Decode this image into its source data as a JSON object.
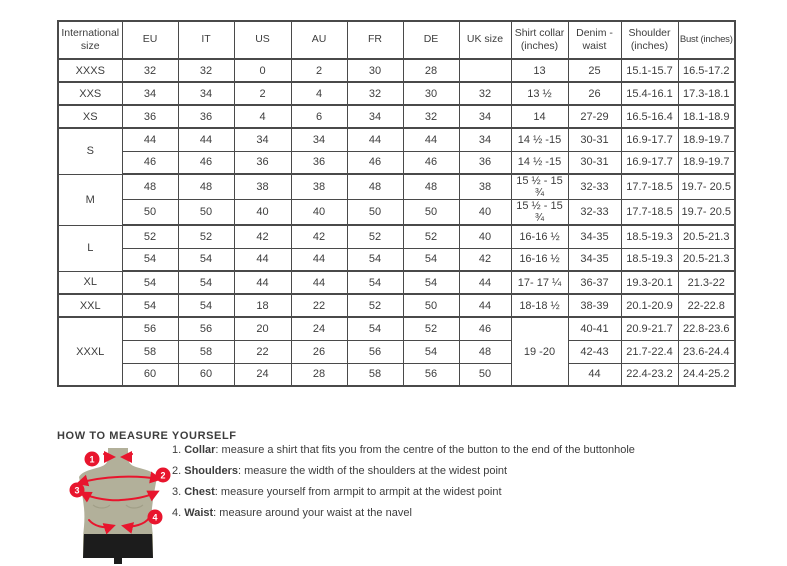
{
  "colors": {
    "accent": "#e8152d",
    "mannequin": "#b2b09a",
    "shorts": "#1c1c1c",
    "border": "#4a4a4a",
    "text": "#3d3d3d"
  },
  "table": {
    "headers": [
      "International size",
      "EU",
      "IT",
      "US",
      "AU",
      "FR",
      "DE",
      "UK size",
      "Shirt collar (inches)",
      "Denim - waist",
      "Shoulder (inches)",
      "Bust (inches)"
    ],
    "rows": [
      {
        "cells": [
          "XXXS",
          "32",
          "32",
          "0",
          "2",
          "30",
          "28",
          "",
          "13",
          "25",
          "15.1-15.7",
          "16.5-17.2"
        ],
        "group_end": true
      },
      {
        "cells": [
          "XXS",
          "34",
          "34",
          "2",
          "4",
          "32",
          "30",
          "32",
          "13 ½",
          "26",
          "15.4-16.1",
          "17.3-18.1"
        ],
        "group_end": true
      },
      {
        "cells": [
          "XS",
          "36",
          "36",
          "4",
          "6",
          "34",
          "32",
          "34",
          "14",
          "27-29",
          "16.5-16.4",
          "18.1-18.9"
        ],
        "group_end": true
      },
      {
        "cells": [
          {
            "t": "S",
            "rs": 2
          },
          "44",
          "44",
          "34",
          "34",
          "44",
          "44",
          "34",
          "14 ½ -15",
          "30-31",
          "16.9-17.7",
          "18.9-19.7"
        ],
        "group_end": false
      },
      {
        "cells": [
          "46",
          "46",
          "36",
          "36",
          "46",
          "46",
          "36",
          "14 ½ -15",
          "30-31",
          "16.9-17.7",
          "18.9-19.7"
        ],
        "group_end": true
      },
      {
        "cells": [
          {
            "t": "M",
            "rs": 2
          },
          "48",
          "48",
          "38",
          "38",
          "48",
          "48",
          "38",
          "15 ½ - 15 ¾",
          "32-33",
          "17.7-18.5",
          "19.7- 20.5"
        ],
        "group_end": false
      },
      {
        "cells": [
          "50",
          "50",
          "40",
          "40",
          "50",
          "50",
          "40",
          "15 ½ - 15 ¾",
          "32-33",
          "17.7-18.5",
          "19.7- 20.5"
        ],
        "group_end": true
      },
      {
        "cells": [
          {
            "t": "L",
            "rs": 2
          },
          "52",
          "52",
          "42",
          "42",
          "52",
          "52",
          "40",
          "16-16 ½",
          "34-35",
          "18.5-19.3",
          "20.5-21.3"
        ],
        "group_end": false
      },
      {
        "cells": [
          "54",
          "54",
          "44",
          "44",
          "54",
          "54",
          "42",
          "16-16 ½",
          "34-35",
          "18.5-19.3",
          "20.5-21.3"
        ],
        "group_end": true
      },
      {
        "cells": [
          "XL",
          "54",
          "54",
          "44",
          "44",
          "54",
          "54",
          "44",
          "17- 17 ¼",
          "36-37",
          "19.3-20.1",
          "21.3-22"
        ],
        "group_end": true
      },
      {
        "cells": [
          "XXL",
          "54",
          "54",
          "18",
          "22",
          "52",
          "50",
          "44",
          "18-18 ½",
          "38-39",
          "20.1-20.9",
          "22-22.8"
        ],
        "group_end": true
      },
      {
        "cells": [
          {
            "t": "XXXL",
            "rs": 3
          },
          "56",
          "56",
          "20",
          "24",
          "54",
          "52",
          "46",
          {
            "t": "19 -20",
            "rs": 3
          },
          "40-41",
          "20.9-21.7",
          "22.8-23.6"
        ],
        "group_end": false
      },
      {
        "cells": [
          "58",
          "58",
          "22",
          "26",
          "56",
          "54",
          "48",
          "42-43",
          "21.7-22.4",
          "23.6-24.4"
        ],
        "group_end": false
      },
      {
        "cells": [
          "60",
          "60",
          "24",
          "28",
          "58",
          "56",
          "50",
          "44",
          "22.4-23.2",
          "24.4-25.2"
        ],
        "group_end": true
      }
    ]
  },
  "measure": {
    "title": "HOW TO MEASURE YOURSELF",
    "steps": [
      {
        "num": "1.",
        "label": "Collar",
        "text": "measure a shirt that fits you from the centre of the button to the end of the buttonhole"
      },
      {
        "num": "2.",
        "label": "Shoulders",
        "text": "measure the width of the shoulders at the widest point"
      },
      {
        "num": "3.",
        "label": "Chest",
        "text": "measure yourself from armpit to armpit at the widest point"
      },
      {
        "num": "4.",
        "label": "Waist",
        "text": "measure around your waist at the navel"
      }
    ]
  },
  "illustration": {
    "markers": [
      "1",
      "2",
      "3",
      "4"
    ]
  }
}
